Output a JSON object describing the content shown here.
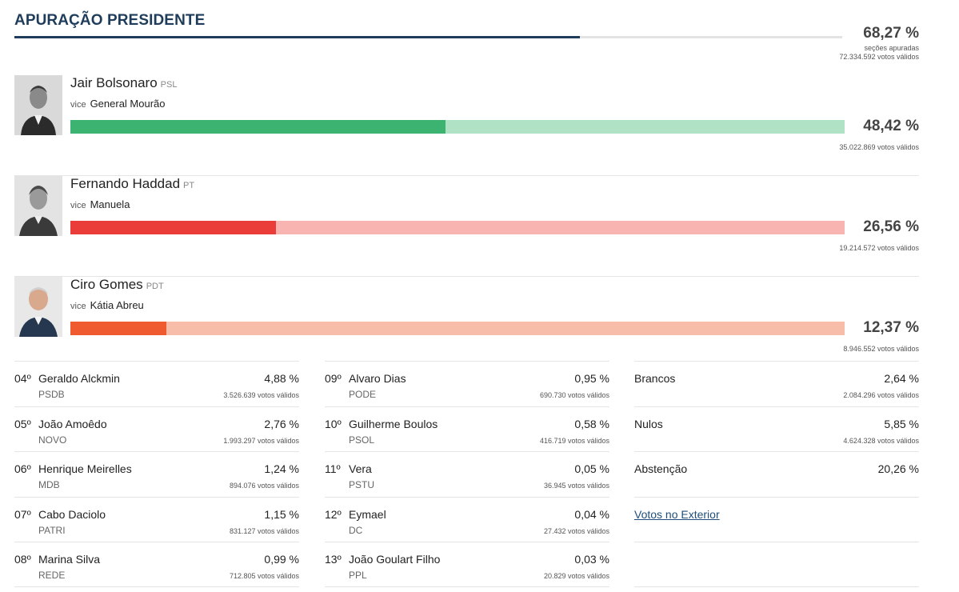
{
  "header": {
    "title": "APURAÇÃO PRESIDENTE",
    "progress_fraction": 0.6827,
    "pct": "68,27 %",
    "sections_label": "seções apuradas",
    "valid_votes": "72.334.592 votos válidos"
  },
  "colors": {
    "header": "#1f3d5a",
    "bolsonaro": "#3cb371",
    "bolsonaro_light": "#b0e2c5",
    "haddad": "#ea3d39",
    "haddad_light": "#f7b4b1",
    "ciro": "#ef5a2e",
    "ciro_light": "#f8bda9"
  },
  "candidates": [
    {
      "name": "Jair Bolsonaro",
      "party": "PSL",
      "vice_label": "vice",
      "vice": "General Mourão",
      "pct": "48,42 %",
      "fraction": 0.4842,
      "votes": "35.022.869 votos válidos",
      "photo_icon": "candidate-photo"
    },
    {
      "name": "Fernando Haddad",
      "party": "PT",
      "vice_label": "vice",
      "vice": "Manuela",
      "pct": "26,56 %",
      "fraction": 0.2656,
      "votes": "19.214.572 votos válidos",
      "photo_icon": "candidate-photo"
    },
    {
      "name": "Ciro Gomes",
      "party": "PDT",
      "vice_label": "vice",
      "vice": "Kátia Abreu",
      "pct": "12,37 %",
      "fraction": 0.1237,
      "votes": "8.946.552 votos válidos",
      "photo_icon": "candidate-photo"
    }
  ],
  "others_col1": [
    {
      "rank": "04º",
      "name": "Geraldo Alckmin",
      "party": "PSDB",
      "pct": "4,88 %",
      "votes": "3.526.639 votos válidos"
    },
    {
      "rank": "05º",
      "name": "João Amoêdo",
      "party": "NOVO",
      "pct": "2,76 %",
      "votes": "1.993.297 votos válidos"
    },
    {
      "rank": "06º",
      "name": "Henrique Meirelles",
      "party": "MDB",
      "pct": "1,24 %",
      "votes": "894.076 votos válidos"
    },
    {
      "rank": "07º",
      "name": "Cabo Daciolo",
      "party": "PATRI",
      "pct": "1,15 %",
      "votes": "831.127 votos válidos"
    },
    {
      "rank": "08º",
      "name": "Marina Silva",
      "party": "REDE",
      "pct": "0,99 %",
      "votes": "712.805 votos válidos"
    }
  ],
  "others_col2": [
    {
      "rank": "09º",
      "name": "Alvaro Dias",
      "party": "PODE",
      "pct": "0,95 %",
      "votes": "690.730 votos válidos"
    },
    {
      "rank": "10º",
      "name": "Guilherme Boulos",
      "party": "PSOL",
      "pct": "0,58 %",
      "votes": "416.719 votos válidos"
    },
    {
      "rank": "11º",
      "name": "Vera",
      "party": "PSTU",
      "pct": "0,05 %",
      "votes": "36.945 votos válidos"
    },
    {
      "rank": "12º",
      "name": "Eymael",
      "party": "DC",
      "pct": "0,04 %",
      "votes": "27.432 votos válidos"
    },
    {
      "rank": "13º",
      "name": "João Goulart Filho",
      "party": "PPL",
      "pct": "0,03 %",
      "votes": "20.829 votos válidos"
    }
  ],
  "others_col3": [
    {
      "name": "Brancos",
      "pct": "2,64 %",
      "votes": "2.084.296 votos válidos"
    },
    {
      "name": "Nulos",
      "pct": "5,85 %",
      "votes": "4.624.328 votos válidos"
    },
    {
      "name": "Abstenção",
      "pct": "20,26 %",
      "votes": ""
    }
  ],
  "exterior_link": "Votos no Exterior"
}
